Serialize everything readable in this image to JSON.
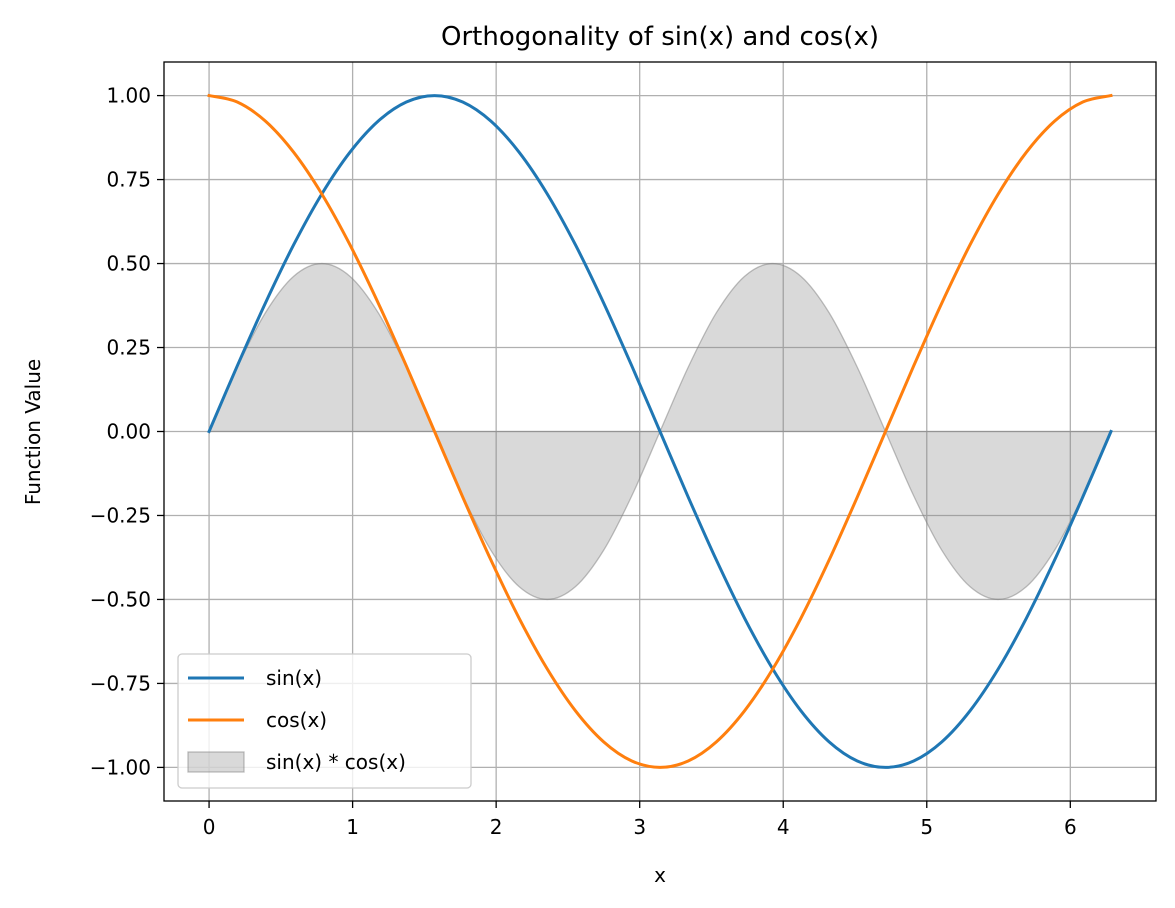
{
  "chart_data": {
    "type": "line",
    "title": "Orthogonality of sin(x) and cos(x)",
    "xlabel": "x",
    "ylabel": "Function Value",
    "xlim": [
      -0.314,
      6.597
    ],
    "ylim": [
      -1.1,
      1.1
    ],
    "x_ticks": [
      0,
      1,
      2,
      3,
      4,
      5,
      6
    ],
    "x_tick_labels": [
      "0",
      "1",
      "2",
      "3",
      "4",
      "5",
      "6"
    ],
    "y_ticks": [
      1.0,
      0.75,
      0.5,
      0.25,
      0.0,
      -0.25,
      -0.5,
      -0.75,
      -1.0
    ],
    "y_tick_labels": [
      "1.00",
      "0.75",
      "0.50",
      "0.25",
      "0.00",
      "−0.25",
      "−0.50",
      "−0.75",
      "−1.00"
    ],
    "grid": true,
    "legend_position": "lower-left",
    "x": [
      0,
      0.1963,
      0.3927,
      0.589,
      0.7854,
      0.9817,
      1.1781,
      1.3744,
      1.5708,
      1.7671,
      1.9635,
      2.1598,
      2.3562,
      2.5525,
      2.7489,
      2.9452,
      3.1416,
      3.3379,
      3.5343,
      3.7306,
      3.927,
      4.1233,
      4.3197,
      4.516,
      4.7124,
      4.9087,
      5.1051,
      5.3014,
      5.4978,
      5.6941,
      5.8905,
      6.0868,
      6.2832
    ],
    "series": [
      {
        "name": "sin(x)",
        "kind": "line",
        "color": "#1f77b4",
        "values": [
          0,
          0.1951,
          0.3827,
          0.5556,
          0.7071,
          0.8315,
          0.9239,
          0.9808,
          1,
          0.9808,
          0.9239,
          0.8315,
          0.7071,
          0.5556,
          0.3827,
          0.1951,
          0,
          -0.1951,
          -0.3827,
          -0.5556,
          -0.7071,
          -0.8315,
          -0.9239,
          -0.9808,
          -1,
          -0.9808,
          -0.9239,
          -0.8315,
          -0.7071,
          -0.5556,
          -0.3827,
          -0.1951,
          0
        ]
      },
      {
        "name": "cos(x)",
        "kind": "line",
        "color": "#ff7f0e",
        "values": [
          1,
          0.9808,
          0.9239,
          0.8315,
          0.7071,
          0.5556,
          0.3827,
          0.1951,
          0,
          -0.1951,
          -0.3827,
          -0.5556,
          -0.7071,
          -0.8315,
          -0.9239,
          -0.9808,
          -1,
          -0.9808,
          -0.9239,
          -0.8315,
          -0.7071,
          -0.5556,
          -0.3827,
          -0.1951,
          0,
          0.1951,
          0.3827,
          0.5556,
          0.7071,
          0.8315,
          0.9239,
          0.9808,
          1
        ]
      },
      {
        "name": "sin(x) * cos(x)",
        "kind": "area",
        "color": "#808080",
        "opacity": 0.3,
        "values": [
          0,
          0.1913,
          0.3536,
          0.4619,
          0.5,
          0.4619,
          0.3536,
          0.1913,
          0,
          -0.1913,
          -0.3536,
          -0.4619,
          -0.5,
          -0.4619,
          -0.3536,
          -0.1913,
          0,
          0.1913,
          0.3536,
          0.4619,
          0.5,
          0.4619,
          0.3536,
          0.1913,
          0,
          -0.1913,
          -0.3536,
          -0.4619,
          -0.5,
          -0.4619,
          -0.3536,
          -0.1913,
          0
        ]
      }
    ]
  }
}
